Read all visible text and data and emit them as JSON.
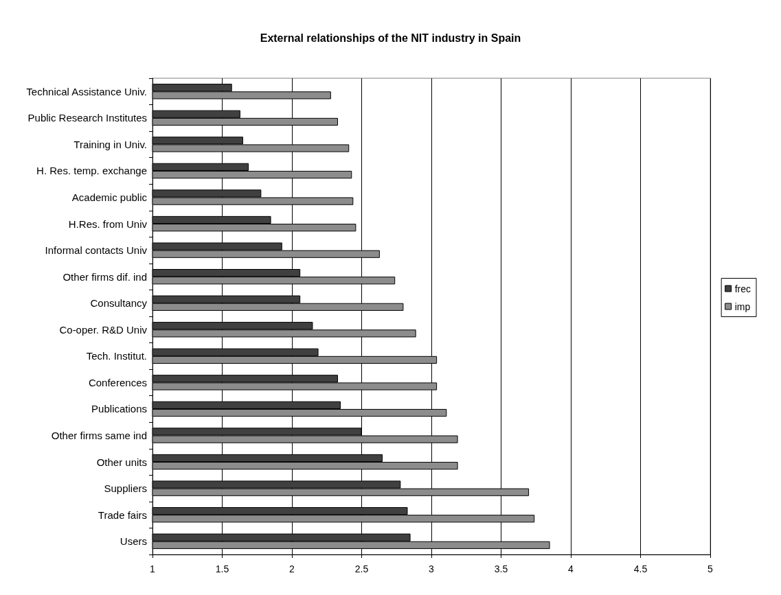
{
  "chart_data": {
    "type": "bar",
    "orientation": "horizontal",
    "title": "External relationships of the NIT industry in Spain",
    "categories": [
      "Technical Assistance Univ.",
      "Public Research Institutes",
      "Training in Univ.",
      "H. Res. temp. exchange",
      "Academic public",
      "H.Res. from Univ",
      "Informal contacts Univ",
      "Other firms dif. ind",
      "Consultancy",
      "Co-oper. R&D Univ",
      "Tech. Institut.",
      "Conferences",
      "Publications",
      "Other firms same ind",
      "Other units",
      "Suppliers",
      "Trade fairs",
      "Users"
    ],
    "series": [
      {
        "name": "frec",
        "color": "#404040",
        "values": [
          1.57,
          1.63,
          1.65,
          1.69,
          1.78,
          1.85,
          1.93,
          2.06,
          2.06,
          2.15,
          2.19,
          2.33,
          2.35,
          2.5,
          2.65,
          2.78,
          2.83,
          2.85
        ]
      },
      {
        "name": "imp",
        "color": "#8c8c8c",
        "values": [
          2.28,
          2.33,
          2.41,
          2.43,
          2.44,
          2.46,
          2.63,
          2.74,
          2.8,
          2.89,
          3.04,
          3.04,
          3.11,
          3.19,
          3.19,
          3.7,
          3.74,
          3.85
        ]
      }
    ],
    "xlim": [
      1,
      5
    ],
    "xticks": [
      1,
      1.5,
      2,
      2.5,
      3,
      3.5,
      4,
      4.5,
      5
    ],
    "grid": "x",
    "legend": "right"
  }
}
